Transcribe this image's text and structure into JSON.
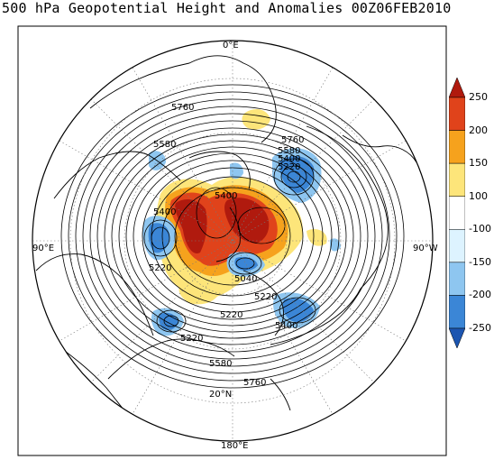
{
  "title": "500 hPa Geopotential Height and Anomalies 00Z06FEB2010",
  "map_labels": {
    "meridian_top": "0°E",
    "meridian_left": "90°E",
    "meridian_right": "90°W",
    "meridian_bottom": "180°E",
    "latitude": "20°N"
  },
  "contour_labels": [
    "5760",
    "5580",
    "5760",
    "5580",
    "5400",
    "5220",
    "5400",
    "5400",
    "5220",
    "5040",
    "5220",
    "5220",
    "5400",
    "5220",
    "5580",
    "5760"
  ],
  "colorbar": {
    "levels": [
      "250",
      "200",
      "150",
      "100",
      "-100",
      "-150",
      "-200",
      "-250"
    ],
    "colors": [
      "#b01a0e",
      "#e0431b",
      "#f6a21d",
      "#fde57a",
      "#ffffff",
      "#ddf3ff",
      "#8ec6f0",
      "#3b86d6",
      "#1c55b0"
    ]
  }
}
